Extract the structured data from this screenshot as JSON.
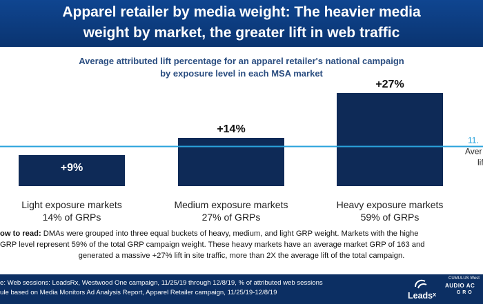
{
  "header": {
    "title_line1": "Apparel retailer by media weight: The heavier media",
    "title_line2": "weight by market, the greater lift in web traffic"
  },
  "chart_data": {
    "type": "bar",
    "title_line1": "Average attributed lift percentage for an apparel retailer's national campaign",
    "title_line2": "by exposure level in each MSA market",
    "categories": [
      "Light exposure markets",
      "Medium exposure markets",
      "Heavy exposure markets"
    ],
    "category_sublabels": [
      "14% of GRPs",
      "27% of GRPs",
      "59% of GRPs"
    ],
    "values": [
      9,
      14,
      27
    ],
    "data_labels": [
      "+9%",
      "+14%",
      "+27%"
    ],
    "ylim": [
      0,
      30
    ],
    "reference_line": {
      "value": 11.5,
      "label_line1": "11.",
      "label_line2": "Aver",
      "label_line3": "lif"
    },
    "bar_color": "#0e2a57",
    "line_color": "#2aa3dc"
  },
  "how_to_read": {
    "label": "ow to read:",
    "line1": " DMAs were grouped into three equal buckets of heavy, medium, and light GRP weight. Markets with the highe",
    "line2": "GRP level represent 59% of the total GRP campaign weight. These heavy markets have an average market GRP of 163 and",
    "line3": "generated a massive +27% lift in site traffic, more than 2X the average lift of the total campaign."
  },
  "footer": {
    "source_line1": "e: Web sessions: LeadsRx, Westwood One campaign, 11/25/19 through 12/8/19, % of attributed web sessions",
    "source_line2": "ule based on Media Monitors Ad Analysis Report, Apparel Retailer campaign, 11/25/19-12/8/19",
    "logo_leads": "Leads",
    "logo_leads_x": "x",
    "logo_audio": "AUDIO AC",
    "logo_audio_sub": "G R O",
    "logo_audio_top": "CUMULUS  West"
  }
}
